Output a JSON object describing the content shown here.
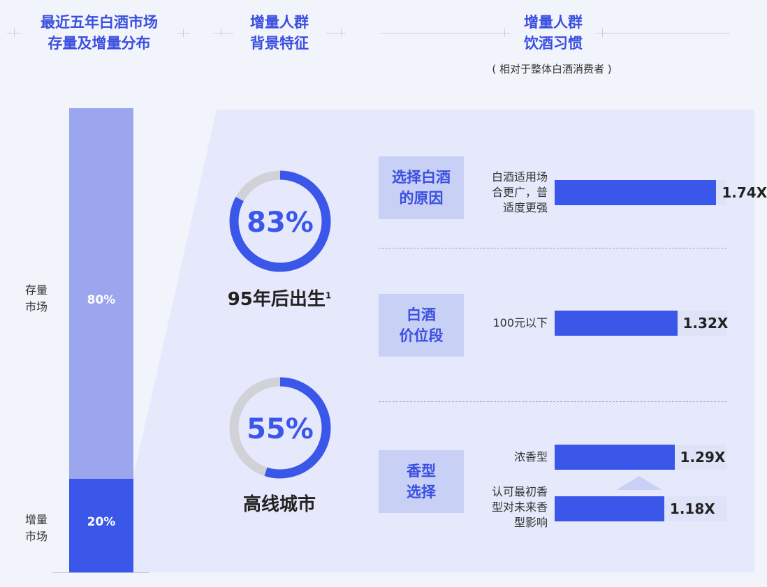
{
  "headers": {
    "col1": [
      "最近五年白酒市场",
      "存量及增量分布"
    ],
    "col2": [
      "增量人群",
      "背景特征"
    ],
    "col3": [
      "增量人群",
      "饮酒习惯"
    ],
    "col3_sub": "( 相对于整体白酒消费者 )"
  },
  "market_bar": {
    "stock_label": [
      "存量",
      "市场"
    ],
    "increment_label": [
      "增量",
      "市场"
    ],
    "stock_pct": "80%",
    "increment_pct": "20%"
  },
  "rings": [
    {
      "value": 83,
      "text": "83%",
      "label": "95年后出生",
      "sup": "1"
    },
    {
      "value": 55,
      "text": "55%",
      "label": "高线城市",
      "sup": ""
    }
  ],
  "categories": [
    {
      "title": [
        "选择白酒",
        "的原因"
      ]
    },
    {
      "title": [
        "白酒",
        "价位段"
      ]
    },
    {
      "title": [
        "香型",
        "选择"
      ]
    }
  ],
  "chart_data": {
    "type": "bar",
    "title": "增量人群饮酒习惯",
    "subtitle": "( 相对于整体白酒消费者 )",
    "categories": [
      "白酒适用场合更广，普适度更强",
      "100元以下",
      "浓香型",
      "认可最初香型对未来香型影响"
    ],
    "values": [
      1.74,
      1.32,
      1.29,
      1.18
    ],
    "value_labels": [
      "1.74X",
      "1.32X",
      "1.29X",
      "1.18X"
    ],
    "row_labels": [
      [
        "白酒适用场",
        "合更广，普",
        "适度更强"
      ],
      [
        "100元以下"
      ],
      [
        "浓香型"
      ],
      [
        "认可最初香",
        "型对未来香",
        "型影响"
      ]
    ],
    "xlim": [
      0,
      1.85
    ],
    "market_share": {
      "stock": 80,
      "increment": 20
    },
    "ring_values": {
      "born_after_1995": 83,
      "high_tier_cities": 55
    }
  },
  "colors": {
    "accent": "#3b57ea",
    "bar_light": "#9ba6ee",
    "track": "#dfe3f8",
    "category_box": "#c9d0f6",
    "ring_track": "#d0d2d8"
  }
}
